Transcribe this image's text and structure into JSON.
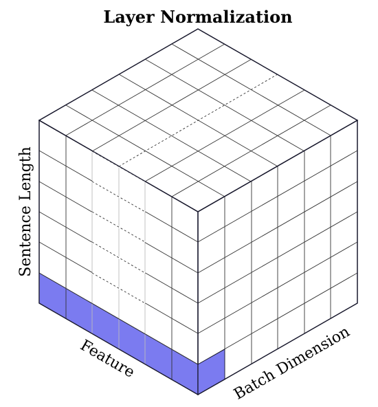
{
  "title": "Layer Normalization",
  "labels": {
    "sentence_length": "Sentence Length",
    "feature": "Feature",
    "batch_dimension": "Batch Dimension"
  },
  "colors": {
    "highlight": "#7b7bf0",
    "edge": "#1a1a2e"
  }
}
